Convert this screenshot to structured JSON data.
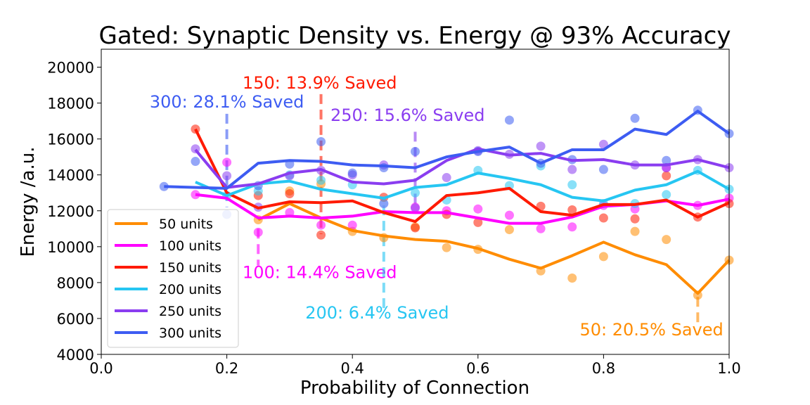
{
  "chart_data": {
    "type": "line",
    "title": "Gated: Synaptic Density vs. Energy @ 93% Accuracy",
    "xlabel": "Probability of Connection",
    "ylabel": "Energy /a.u.",
    "xlim": [
      0.0,
      1.0
    ],
    "ylim": [
      4000,
      21000
    ],
    "xticks": [
      "0.0",
      "0.2",
      "0.4",
      "0.6",
      "0.8",
      "1.0"
    ],
    "xtick_values": [
      0.0,
      0.2,
      0.4,
      0.6,
      0.8,
      1.0
    ],
    "yticks": [
      "4000",
      "6000",
      "8000",
      "10000",
      "12000",
      "14000",
      "16000",
      "18000",
      "20000"
    ],
    "ytick_values": [
      4000,
      6000,
      8000,
      10000,
      12000,
      14000,
      16000,
      18000,
      20000
    ],
    "grid": false,
    "legend_position": "bottom-left",
    "series": [
      {
        "name": "50 units",
        "color": "#ff8c00",
        "line": {
          "x": [
            0.25,
            0.3,
            0.35,
            0.4,
            0.45,
            0.5,
            0.55,
            0.6,
            0.65,
            0.7,
            0.75,
            0.8,
            0.85,
            0.9,
            0.95,
            1.0
          ],
          "y": [
            11500,
            12400,
            11600,
            10900,
            10600,
            10400,
            10300,
            9900,
            9300,
            8800,
            9500,
            10250,
            9550,
            9000,
            7400,
            9250
          ]
        },
        "points": {
          "x": [
            0.25,
            0.3,
            0.35,
            0.4,
            0.45,
            0.5,
            0.55,
            0.6,
            0.65,
            0.7,
            0.75,
            0.8,
            0.85,
            0.9,
            0.95,
            1.0
          ],
          "y": [
            11500,
            13100,
            13500,
            10850,
            10500,
            11100,
            9950,
            9850,
            10950,
            8650,
            8250,
            9450,
            10850,
            10400,
            7300,
            9250
          ]
        }
      },
      {
        "name": "100 units",
        "color": "#ff00ff",
        "line": {
          "x": [
            0.15,
            0.2,
            0.25,
            0.3,
            0.35,
            0.4,
            0.45,
            0.5,
            0.55,
            0.6,
            0.65,
            0.7,
            0.75,
            0.8,
            0.85,
            0.9,
            0.95,
            1.0
          ],
          "y": [
            12900,
            12700,
            11600,
            11700,
            11600,
            11700,
            11950,
            11900,
            11900,
            11600,
            11300,
            11300,
            11650,
            12250,
            12350,
            12550,
            12300,
            12650
          ]
        },
        "points": {
          "x": [
            0.15,
            0.2,
            0.25,
            0.3,
            0.35,
            0.4,
            0.45,
            0.5,
            0.55,
            0.6,
            0.65,
            0.7,
            0.75,
            0.8,
            0.85,
            0.9,
            0.95,
            1.0
          ],
          "y": [
            12900,
            14700,
            10800,
            11900,
            11200,
            11200,
            12400,
            12200,
            12000,
            12100,
            11750,
            11000,
            11100,
            12300,
            12100,
            14400,
            12300,
            12700
          ]
        }
      },
      {
        "name": "150 units",
        "color": "#ff1a00",
        "line": {
          "x": [
            0.15,
            0.2,
            0.25,
            0.3,
            0.35,
            0.4,
            0.45,
            0.5,
            0.55,
            0.6,
            0.65,
            0.7,
            0.75,
            0.8,
            0.85,
            0.9,
            0.95,
            1.0
          ],
          "y": [
            16550,
            13000,
            12150,
            12500,
            12450,
            12550,
            11900,
            11400,
            12850,
            13000,
            13250,
            11950,
            11750,
            12350,
            12350,
            12600,
            11650,
            12450
          ]
        },
        "points": {
          "x": [
            0.15,
            0.25,
            0.3,
            0.35,
            0.45,
            0.5,
            0.55,
            0.6,
            0.7,
            0.75,
            0.8,
            0.85,
            0.9,
            0.95,
            1.0
          ],
          "y": [
            16550,
            12850,
            12950,
            10650,
            12750,
            11050,
            11800,
            11350,
            12250,
            12050,
            11600,
            11550,
            13950,
            11650,
            12400
          ]
        }
      },
      {
        "name": "200 units",
        "color": "#26c6f2",
        "line": {
          "x": [
            0.15,
            0.2,
            0.25,
            0.3,
            0.35,
            0.4,
            0.45,
            0.5,
            0.55,
            0.6,
            0.65,
            0.7,
            0.75,
            0.8,
            0.85,
            0.9,
            0.95,
            1.0
          ],
          "y": [
            13600,
            12850,
            13500,
            13650,
            13200,
            12950,
            12700,
            13300,
            13450,
            14100,
            13800,
            13450,
            12750,
            12550,
            13150,
            13450,
            14200,
            13200
          ]
        },
        "points": {
          "x": [
            0.2,
            0.25,
            0.3,
            0.35,
            0.4,
            0.45,
            0.5,
            0.55,
            0.6,
            0.65,
            0.7,
            0.75,
            0.8,
            0.85,
            0.9,
            0.95,
            1.0
          ],
          "y": [
            12850,
            13100,
            14000,
            13700,
            13450,
            12400,
            13000,
            12600,
            14250,
            13400,
            14500,
            13450,
            12400,
            12400,
            12900,
            14250,
            13200
          ]
        }
      },
      {
        "name": "250 units",
        "color": "#8a3df0",
        "line": {
          "x": [
            0.15,
            0.2,
            0.25,
            0.3,
            0.35,
            0.4,
            0.45,
            0.5,
            0.55,
            0.6,
            0.65,
            0.7,
            0.75,
            0.8,
            0.85,
            0.9,
            0.95,
            1.0
          ],
          "y": [
            15400,
            13300,
            13500,
            14100,
            14300,
            13600,
            13500,
            13700,
            14800,
            15450,
            15100,
            15200,
            14800,
            14850,
            14550,
            14550,
            14850,
            14400
          ]
        },
        "points": {
          "x": [
            0.15,
            0.2,
            0.25,
            0.3,
            0.35,
            0.4,
            0.45,
            0.5,
            0.55,
            0.6,
            0.65,
            0.7,
            0.75,
            0.8,
            0.85,
            0.9,
            0.95,
            1.0
          ],
          "y": [
            15450,
            13950,
            12200,
            13950,
            14250,
            14000,
            14550,
            12150,
            13850,
            15350,
            15150,
            15600,
            14300,
            15700,
            14550,
            14400,
            14850,
            14400
          ]
        }
      },
      {
        "name": "300 units",
        "color": "#3d5cf2",
        "line": {
          "x": [
            0.1,
            0.2,
            0.25,
            0.3,
            0.35,
            0.4,
            0.45,
            0.5,
            0.55,
            0.6,
            0.65,
            0.7,
            0.75,
            0.8,
            0.85,
            0.9,
            0.95,
            1.0
          ],
          "y": [
            13350,
            13250,
            14650,
            14800,
            14750,
            14550,
            14500,
            14400,
            15000,
            15300,
            15550,
            14650,
            15400,
            15400,
            16550,
            16250,
            17550,
            16300
          ]
        },
        "points": {
          "x": [
            0.1,
            0.15,
            0.2,
            0.25,
            0.3,
            0.35,
            0.4,
            0.45,
            0.5,
            0.6,
            0.65,
            0.7,
            0.75,
            0.8,
            0.85,
            0.9,
            0.95,
            1.0
          ],
          "y": [
            13350,
            14750,
            11800,
            13400,
            14600,
            15850,
            14100,
            14400,
            15300,
            15300,
            17050,
            14650,
            14850,
            14300,
            17150,
            14800,
            17600,
            16300
          ]
        }
      }
    ],
    "annotations": [
      {
        "text": "300: 28.1% Saved",
        "color": "#3d5cf2",
        "x": 0.2,
        "line_from": 17400,
        "line_to": 12200,
        "text_y": 17750,
        "anchor": "middle",
        "text_x": 0.2
      },
      {
        "text": "150: 13.9% Saved",
        "color": "#ff1a00",
        "x": 0.35,
        "line_from": 18500,
        "line_to": 10700,
        "text_y": 18800,
        "anchor": "start",
        "text_x": 0.225
      },
      {
        "text": "250: 15.6% Saved",
        "color": "#8a3df0",
        "x": 0.5,
        "line_from": 16400,
        "line_to": 12400,
        "text_y": 17000,
        "anchor": "start",
        "text_x": 0.365
      },
      {
        "text": "100: 14.4% Saved",
        "color": "#ff00ff",
        "x": 0.25,
        "line_from": 11000,
        "line_to": 8950,
        "text_y": 8250,
        "anchor": "start",
        "text_x": 0.225
      },
      {
        "text": "200: 6.4% Saved",
        "color": "#26c6f2",
        "x": 0.45,
        "line_from": 12300,
        "line_to": 6400,
        "text_y": 6000,
        "anchor": "start",
        "text_x": 0.325
      },
      {
        "text": "50: 20.5% Saved",
        "color": "#ff8c00",
        "x": 0.95,
        "line_from": 7200,
        "line_to": 5600,
        "text_y": 5050,
        "anchor": "start",
        "text_x": 0.762
      }
    ]
  }
}
